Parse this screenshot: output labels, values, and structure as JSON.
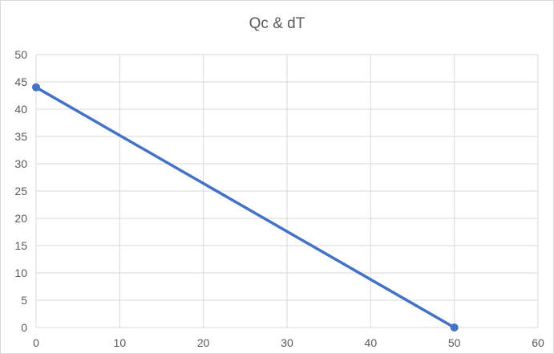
{
  "chart_data": {
    "type": "scatter",
    "title": "Qc & dT",
    "xlabel": "",
    "ylabel": "",
    "xlim": [
      0,
      60
    ],
    "ylim": [
      0,
      50
    ],
    "x_ticks": [
      0,
      10,
      20,
      30,
      40,
      50,
      60
    ],
    "y_ticks": [
      0,
      5,
      10,
      15,
      20,
      25,
      30,
      35,
      40,
      45,
      50
    ],
    "grid": true,
    "series": [
      {
        "x": [
          0,
          50
        ],
        "y": [
          44,
          0
        ],
        "color": "#4472c4",
        "markers": true,
        "line": "straight"
      }
    ]
  }
}
